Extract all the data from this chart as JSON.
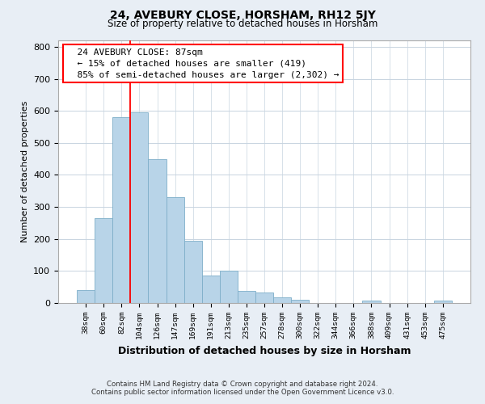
{
  "title": "24, AVEBURY CLOSE, HORSHAM, RH12 5JY",
  "subtitle": "Size of property relative to detached houses in Horsham",
  "xlabel": "Distribution of detached houses by size in Horsham",
  "ylabel": "Number of detached properties",
  "bar_labels": [
    "38sqm",
    "60sqm",
    "82sqm",
    "104sqm",
    "126sqm",
    "147sqm",
    "169sqm",
    "191sqm",
    "213sqm",
    "235sqm",
    "257sqm",
    "278sqm",
    "300sqm",
    "322sqm",
    "344sqm",
    "366sqm",
    "388sqm",
    "409sqm",
    "431sqm",
    "453sqm",
    "475sqm"
  ],
  "bar_heights": [
    40,
    265,
    580,
    595,
    450,
    330,
    195,
    85,
    100,
    38,
    33,
    18,
    10,
    0,
    0,
    0,
    8,
    0,
    0,
    0,
    8
  ],
  "bar_color": "#b8d4e8",
  "bar_edge_color": "#7daec8",
  "vline_bar_index": 2,
  "vline_color": "red",
  "ylim": [
    0,
    820
  ],
  "yticks": [
    0,
    100,
    200,
    300,
    400,
    500,
    600,
    700,
    800
  ],
  "annotation_title": "24 AVEBURY CLOSE: 87sqm",
  "annotation_line1": "← 15% of detached houses are smaller (419)",
  "annotation_line2": "85% of semi-detached houses are larger (2,302) →",
  "footer_line1": "Contains HM Land Registry data © Crown copyright and database right 2024.",
  "footer_line2": "Contains public sector information licensed under the Open Government Licence v3.0.",
  "bg_color": "#e8eef5",
  "plot_bg_color": "#ffffff",
  "grid_color": "#c8d4e0"
}
